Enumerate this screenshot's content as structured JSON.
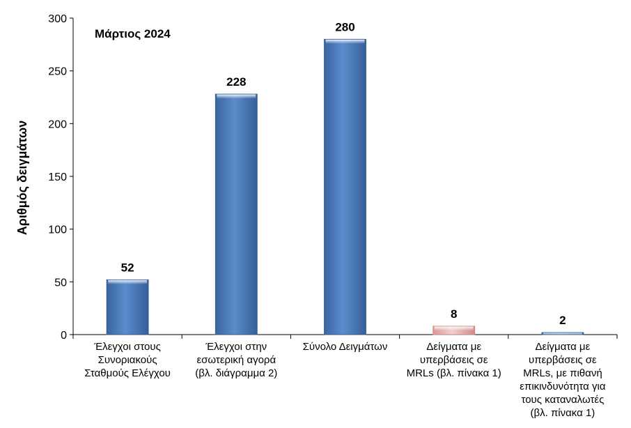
{
  "chart_data": {
    "type": "bar",
    "title": "Μάρτιος 2024",
    "ylabel": "Αριθμός δειγμάτων",
    "xlabel": "",
    "ylim": [
      0,
      300
    ],
    "yticks": [
      0,
      50,
      100,
      150,
      200,
      250,
      300
    ],
    "grid": false,
    "legend": "none",
    "categories": [
      [
        "Έλεγχοι στους",
        "Συνοριακούς",
        "Σταθμούς Ελέγχου"
      ],
      [
        "Έλεγχοι στην",
        "εσωτερική αγορά",
        "(βλ. διάγραμμα 2)"
      ],
      [
        "Σύνολο Δειγμάτων"
      ],
      [
        "Δείγματα με",
        "υπερβάσεις σε",
        "MRLs (βλ. πίνακα 1)"
      ],
      [
        "Δείγματα με",
        "υπερβάσεις σε",
        "MRLs, με πιθανή",
        "επικινδυνότητα για",
        "τους καταναλωτές",
        "(βλ. πίνακα 1)"
      ]
    ],
    "values": [
      52,
      228,
      280,
      8,
      2
    ],
    "data_labels": [
      "52",
      "228",
      "280",
      "8",
      "2"
    ],
    "colors": [
      "#4f81bd",
      "#4f81bd",
      "#4f81bd",
      "#e6b9b8",
      "#4f81bd"
    ]
  }
}
